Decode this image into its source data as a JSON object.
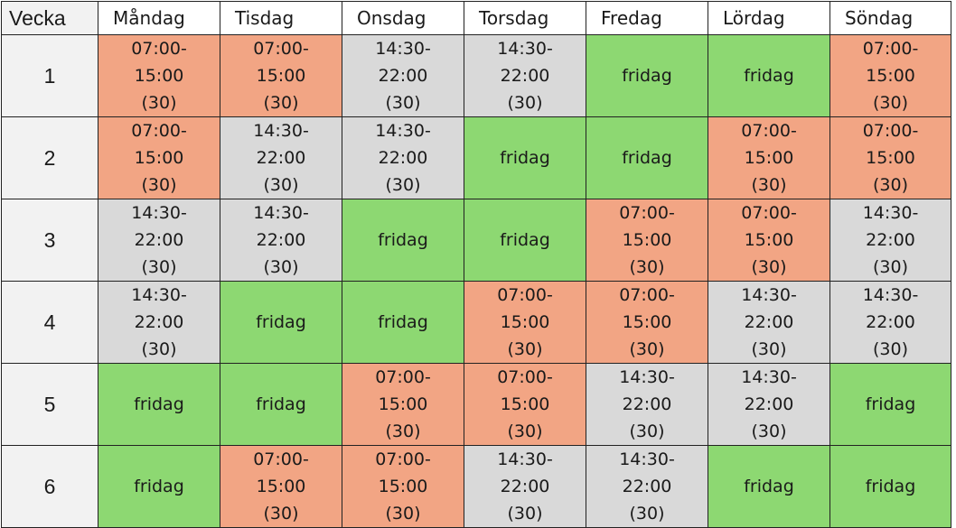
{
  "table": {
    "header": [
      "Vecka",
      "Måndag",
      "Tisdag",
      "Onsdag",
      "Torsdag",
      "Fredag",
      "Lördag",
      "Söndag"
    ],
    "rows": [
      {
        "week": "1",
        "cells": [
          {
            "text": "07:00-\n15:00\n(30)",
            "color": "#f2a584"
          },
          {
            "text": "07:00-\n15:00\n(30)",
            "color": "#f2a584"
          },
          {
            "text": "14:30-\n22:00\n(30)",
            "color": "#d9d9d9"
          },
          {
            "text": "14:30-\n22:00\n(30)",
            "color": "#d9d9d9"
          },
          {
            "text": "fridag",
            "color": "#8dd872"
          },
          {
            "text": "fridag",
            "color": "#8dd872"
          },
          {
            "text": "07:00-\n15:00\n(30)",
            "color": "#f2a584"
          }
        ]
      },
      {
        "week": "2",
        "cells": [
          {
            "text": "07:00-\n15:00\n(30)",
            "color": "#f2a584"
          },
          {
            "text": "14:30-\n22:00\n(30)",
            "color": "#d9d9d9"
          },
          {
            "text": "14:30-\n22:00\n(30)",
            "color": "#d9d9d9"
          },
          {
            "text": "fridag",
            "color": "#8dd872"
          },
          {
            "text": "fridag",
            "color": "#8dd872"
          },
          {
            "text": "07:00-\n15:00\n(30)",
            "color": "#f2a584"
          },
          {
            "text": "07:00-\n15:00\n(30)",
            "color": "#f2a584"
          }
        ]
      },
      {
        "week": "3",
        "cells": [
          {
            "text": "14:30-\n22:00\n(30)",
            "color": "#d9d9d9"
          },
          {
            "text": "14:30-\n22:00\n(30)",
            "color": "#d9d9d9"
          },
          {
            "text": "fridag",
            "color": "#8dd872"
          },
          {
            "text": "fridag",
            "color": "#8dd872"
          },
          {
            "text": "07:00-\n15:00\n(30)",
            "color": "#f2a584"
          },
          {
            "text": "07:00-\n15:00\n(30)",
            "color": "#f2a584"
          },
          {
            "text": "14:30-\n22:00\n(30)",
            "color": "#d9d9d9"
          }
        ]
      },
      {
        "week": "4",
        "cells": [
          {
            "text": "14:30-\n22:00\n(30)",
            "color": "#d9d9d9"
          },
          {
            "text": "fridag",
            "color": "#8dd872"
          },
          {
            "text": "fridag",
            "color": "#8dd872"
          },
          {
            "text": "07:00-\n15:00\n(30)",
            "color": "#f2a584"
          },
          {
            "text": "07:00-\n15:00\n(30)",
            "color": "#f2a584"
          },
          {
            "text": "14:30-\n22:00\n(30)",
            "color": "#d9d9d9"
          },
          {
            "text": "14:30-\n22:00\n(30)",
            "color": "#d9d9d9"
          }
        ]
      },
      {
        "week": "5",
        "cells": [
          {
            "text": "fridag",
            "color": "#8dd872"
          },
          {
            "text": "fridag",
            "color": "#8dd872"
          },
          {
            "text": "07:00-\n15:00\n(30)",
            "color": "#f2a584"
          },
          {
            "text": "07:00-\n15:00\n(30)",
            "color": "#f2a584"
          },
          {
            "text": "14:30-\n22:00\n(30)",
            "color": "#d9d9d9"
          },
          {
            "text": "14:30-\n22:00\n(30)",
            "color": "#d9d9d9"
          },
          {
            "text": "fridag",
            "color": "#8dd872"
          }
        ]
      },
      {
        "week": "6",
        "cells": [
          {
            "text": "fridag",
            "color": "#8dd872"
          },
          {
            "text": "07:00-\n15:00\n(30)",
            "color": "#f2a584"
          },
          {
            "text": "07:00-\n15:00\n(30)",
            "color": "#f2a584"
          },
          {
            "text": "14:30-\n22:00\n(30)",
            "color": "#d9d9d9"
          },
          {
            "text": "14:30-\n22:00\n(30)",
            "color": "#d9d9d9"
          },
          {
            "text": "fridag",
            "color": "#8dd872"
          },
          {
            "text": "fridag",
            "color": "#8dd872"
          }
        ]
      }
    ]
  }
}
